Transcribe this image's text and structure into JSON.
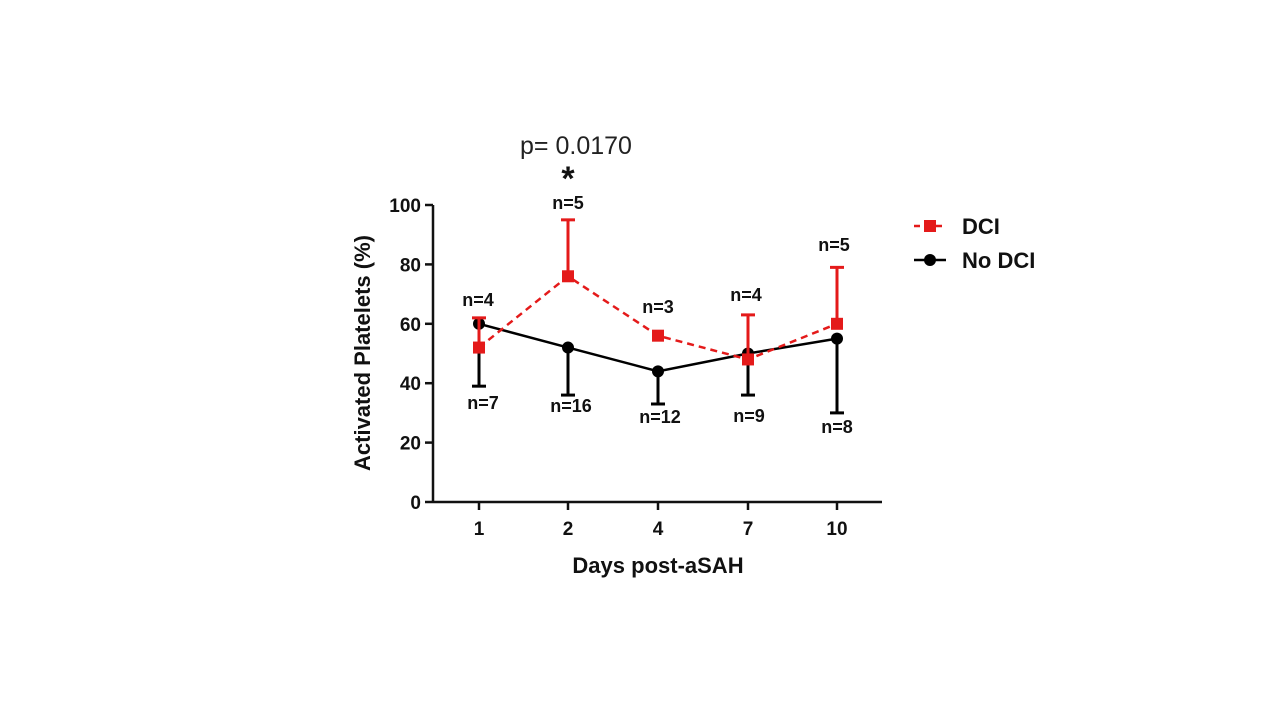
{
  "chart_data": {
    "type": "line",
    "xlabel": "Days post-aSAH",
    "ylabel": "Activated Platelets (%)",
    "ylim": [
      0,
      100
    ],
    "yticks": [
      0,
      20,
      40,
      60,
      80,
      100
    ],
    "categories": [
      "1",
      "2",
      "4",
      "7",
      "10"
    ],
    "series": [
      {
        "name": "DCI",
        "color": "#e41a1a",
        "marker": "square",
        "line_style": "dashed",
        "values": [
          52,
          76,
          56,
          48,
          60
        ],
        "error_upper": [
          62,
          95,
          56,
          63,
          79
        ],
        "n_labels": [
          "n=4",
          "n=5",
          "n=3",
          "n=4",
          "n=5"
        ]
      },
      {
        "name": "No DCI",
        "color": "#000000",
        "marker": "circle",
        "line_style": "solid",
        "values": [
          60,
          52,
          44,
          50,
          55
        ],
        "error_lower": [
          39,
          36,
          33,
          36,
          30
        ],
        "n_labels": [
          "n=7",
          "n=16",
          "n=12",
          "n=9",
          "n=8"
        ]
      }
    ],
    "annotations": {
      "p_value": "p= 0.0170",
      "significance": "*"
    },
    "legend_position": "right"
  }
}
